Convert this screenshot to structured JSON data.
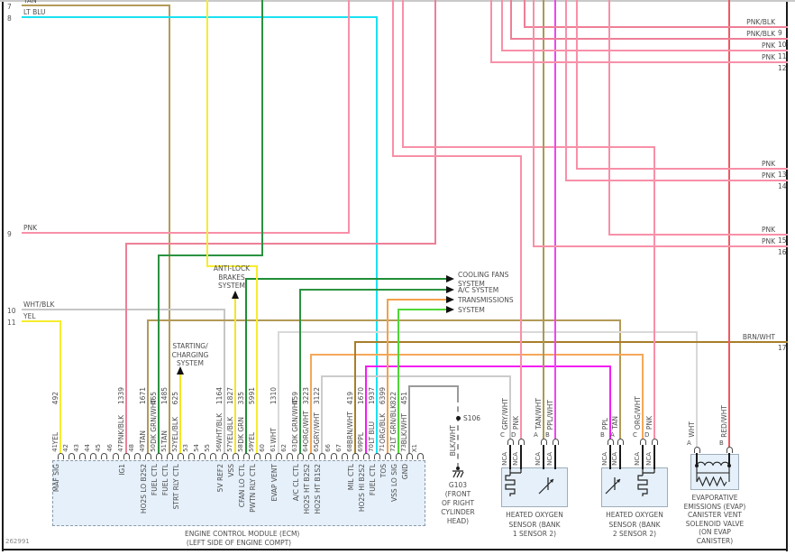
{
  "page": {
    "footer_code": "262991"
  },
  "palette": {
    "PNK": "#f890a8",
    "PNK_BLK": "#ee7f97",
    "RED_WHT": "#ee5a62",
    "LT_BLU": "#19e2f2",
    "TAN": "#b29a58",
    "TAN_WHT": "#a99a52",
    "YEL": "#f6ec2d",
    "YEL_BLK": "#f2e626",
    "DK_GRN": "#1f8e35",
    "DK_GRN_WHT": "#2b9240",
    "LT_GRN_BLK": "#4fd636",
    "PPL": "#f41df4",
    "PPL_WHT": "#ef46ef",
    "ORG_WHT": "#f4a859",
    "ORG_BLK": "#f3a14b",
    "BRN_WHT": "#a87e2a",
    "WHT": "#d9d9d9",
    "WHT_BLK": "#c6c6c6",
    "GRY_WHT": "#cbcbcb",
    "BLK_WHT": "#9a9a9a",
    "box_fill": "#e5f0fa",
    "box_border": "#9fadba",
    "ecm_border": "#8a99a8",
    "text": "#4d4d4d",
    "black": "#1a1a1a"
  },
  "left_edge_wires": [
    {
      "num": "7",
      "label": "TAN",
      "color": "TAN"
    },
    {
      "num": "8",
      "label": "LT BLU",
      "color": "LT_BLU"
    },
    {
      "num": "9",
      "label": "PNK",
      "color": "PNK"
    },
    {
      "num": "10",
      "label": "WHT/BLK",
      "color": "WHT_BLK"
    },
    {
      "num": "11",
      "label": "YEL",
      "color": "YEL"
    }
  ],
  "right_edge_wires": [
    {
      "num": "9",
      "label": "PNK/BLK",
      "color": "PNK_BLK"
    },
    {
      "num": "10",
      "label": "PNK/BLK",
      "color": "PNK_BLK"
    },
    {
      "num": "11",
      "label": "PNK",
      "color": "PNK"
    },
    {
      "num": "12",
      "label": "PNK",
      "color": "PNK"
    },
    {
      "num": "13",
      "label": "PNK",
      "color": "PNK"
    },
    {
      "num": "14",
      "label": "PNK",
      "color": "PNK"
    },
    {
      "num": "15",
      "label": "PNK",
      "color": "PNK"
    },
    {
      "num": "16",
      "label": "PNK",
      "color": "PNK"
    },
    {
      "num": "17",
      "label": "BRN/WHT",
      "color": "BRN_WHT"
    }
  ],
  "systems": {
    "anti_lock": [
      "ANTI-LOCK",
      "BRAKES",
      "SYSTEM"
    ],
    "starting": [
      "STARTING/",
      "CHARGING",
      "SYSTEM"
    ],
    "cooling": [
      "COOLING FANS",
      "SYSTEM"
    ],
    "ac": [
      "A/C SYSTEM"
    ],
    "transmissions": [
      "TRANSMISSIONS",
      "SYSTEM"
    ]
  },
  "ecm": {
    "label": [
      "ENGINE CONTROL MODULE (ECM)",
      "(LEFT SIDE OF ENGINE COMPT)"
    ],
    "pins": [
      {
        "num": "41",
        "circuit": "492",
        "color_label": "YEL",
        "color": "YEL",
        "func": "MAF SIG"
      },
      {
        "num": "42"
      },
      {
        "num": "43"
      },
      {
        "num": "44"
      },
      {
        "num": "45"
      },
      {
        "num": "46"
      },
      {
        "num": "47",
        "circuit": "1339",
        "color_label": "PNK/BLK",
        "color": "PNK_BLK",
        "func": "IG1"
      },
      {
        "num": "48"
      },
      {
        "num": "49",
        "circuit": "1671",
        "color_label": "TAN",
        "color": "TAN",
        "func": "HO2S LO B2S2"
      },
      {
        "num": "50",
        "circuit": "465",
        "color_label": "DK GRN/WHT",
        "color": "DK_GRN_WHT",
        "func": "FUEL CTL"
      },
      {
        "num": "51",
        "circuit": "1485",
        "color_label": "TAN",
        "color": "TAN",
        "func": "FUEL CTL"
      },
      {
        "num": "52",
        "circuit": "625",
        "color_label": "YEL/BLK",
        "color": "YEL_BLK",
        "func": "STRT RLY CTL"
      },
      {
        "num": "53"
      },
      {
        "num": "54"
      },
      {
        "num": "55"
      },
      {
        "num": "56",
        "circuit": "1164",
        "color_label": "WHT/BLK",
        "color": "WHT_BLK",
        "func": "5V REF2"
      },
      {
        "num": "57",
        "circuit": "1827",
        "color_label": "YEL/BLK",
        "color": "YEL_BLK",
        "func": "VSS"
      },
      {
        "num": "58",
        "circuit": "335",
        "color_label": "DK GRN",
        "color": "DK_GRN",
        "func": "CFAN LO CTL"
      },
      {
        "num": "59",
        "circuit": "5991",
        "color_label": "YEL",
        "color": "YEL",
        "func": "PWTN RLY CTL"
      },
      {
        "num": "60"
      },
      {
        "num": "61",
        "circuit": "1310",
        "color_label": "WHT",
        "color": "WHT",
        "func": "EVAP VENT"
      },
      {
        "num": "62"
      },
      {
        "num": "63",
        "circuit": "459",
        "color_label": "DK GRN/WHT",
        "color": "DK_GRN_WHT",
        "func": "A/C CL CTL"
      },
      {
        "num": "64",
        "circuit": "3223",
        "color_label": "ORG/WHT",
        "color": "ORG_WHT",
        "func": "HO2S HT B2S2"
      },
      {
        "num": "65",
        "circuit": "3122",
        "color_label": "GRY/WHT",
        "color": "GRY_WHT",
        "func": "HO2S HT B1S2"
      },
      {
        "num": "66"
      },
      {
        "num": "67"
      },
      {
        "num": "68",
        "circuit": "419",
        "color_label": "BRN/WHT",
        "color": "BRN_WHT",
        "func": "MIL CTL"
      },
      {
        "num": "69",
        "circuit": "1670",
        "color_label": "PPL",
        "color": "PPL",
        "func": "HO2S HI B2S2"
      },
      {
        "num": "70",
        "circuit": "1937",
        "color_label": "LT BLU",
        "color": "LT_BLU",
        "func": "FUEL CTL"
      },
      {
        "num": "71",
        "circuit": "6399",
        "color_label": "ORG/BLK",
        "color": "ORG_BLK",
        "func": "TOS"
      },
      {
        "num": "72",
        "circuit": "822",
        "color_label": "LT GRN/BLK",
        "color": "LT_GRN_BLK",
        "func": "VSS LO SIG"
      },
      {
        "num": "73",
        "circuit": "451",
        "color_label": "BLK/WHT",
        "color": "BLK_WHT",
        "func": "GND"
      },
      {
        "num": "X1"
      }
    ]
  },
  "splice": {
    "label": "S106"
  },
  "ground": {
    "wire_label": "BLK/WHT",
    "label": [
      "G103",
      "(FRONT",
      "OF RIGHT",
      "CYLINDER",
      "HEAD)"
    ]
  },
  "components": [
    {
      "id": "hos1",
      "label": [
        "HEATED OXYGEN",
        "SENSOR (BANK",
        "1 SENSOR 2)"
      ],
      "pins": [
        {
          "letter": "C",
          "color_label": "GRY/WHT",
          "nca": "NCA"
        },
        {
          "letter": "D",
          "color_label": "PNK",
          "nca": "NCA"
        },
        {
          "letter": "A",
          "color_label": "TAN/WHT",
          "nca": "NCA"
        },
        {
          "letter": "B",
          "color_label": "PPL/WHT",
          "nca": "NCA"
        }
      ]
    },
    {
      "id": "hos2",
      "label": [
        "HEATED OXYGEN",
        "SENSOR (BANK",
        "2 SENSOR 2)"
      ],
      "pins": [
        {
          "letter": "B",
          "color_label": "PPL",
          "nca": "NCA"
        },
        {
          "letter": "A",
          "color_label": "TAN",
          "nca": "NCA"
        },
        {
          "letter": "C",
          "color_label": "ORG/WHT",
          "nca": "NCA"
        },
        {
          "letter": "D",
          "color_label": "PNK",
          "nca": "NCA"
        }
      ]
    },
    {
      "id": "evap",
      "label": [
        "EVAPORATIVE",
        "EMISSIONS (EVAP)",
        "CANISTER VENT",
        "SOLENOID VALVE",
        "(ON EVAP",
        "CANISTER)"
      ],
      "pins": [
        {
          "letter": "A",
          "color_label": "WHT"
        },
        {
          "letter": "B",
          "color_label": "RED/WHT"
        }
      ]
    }
  ]
}
